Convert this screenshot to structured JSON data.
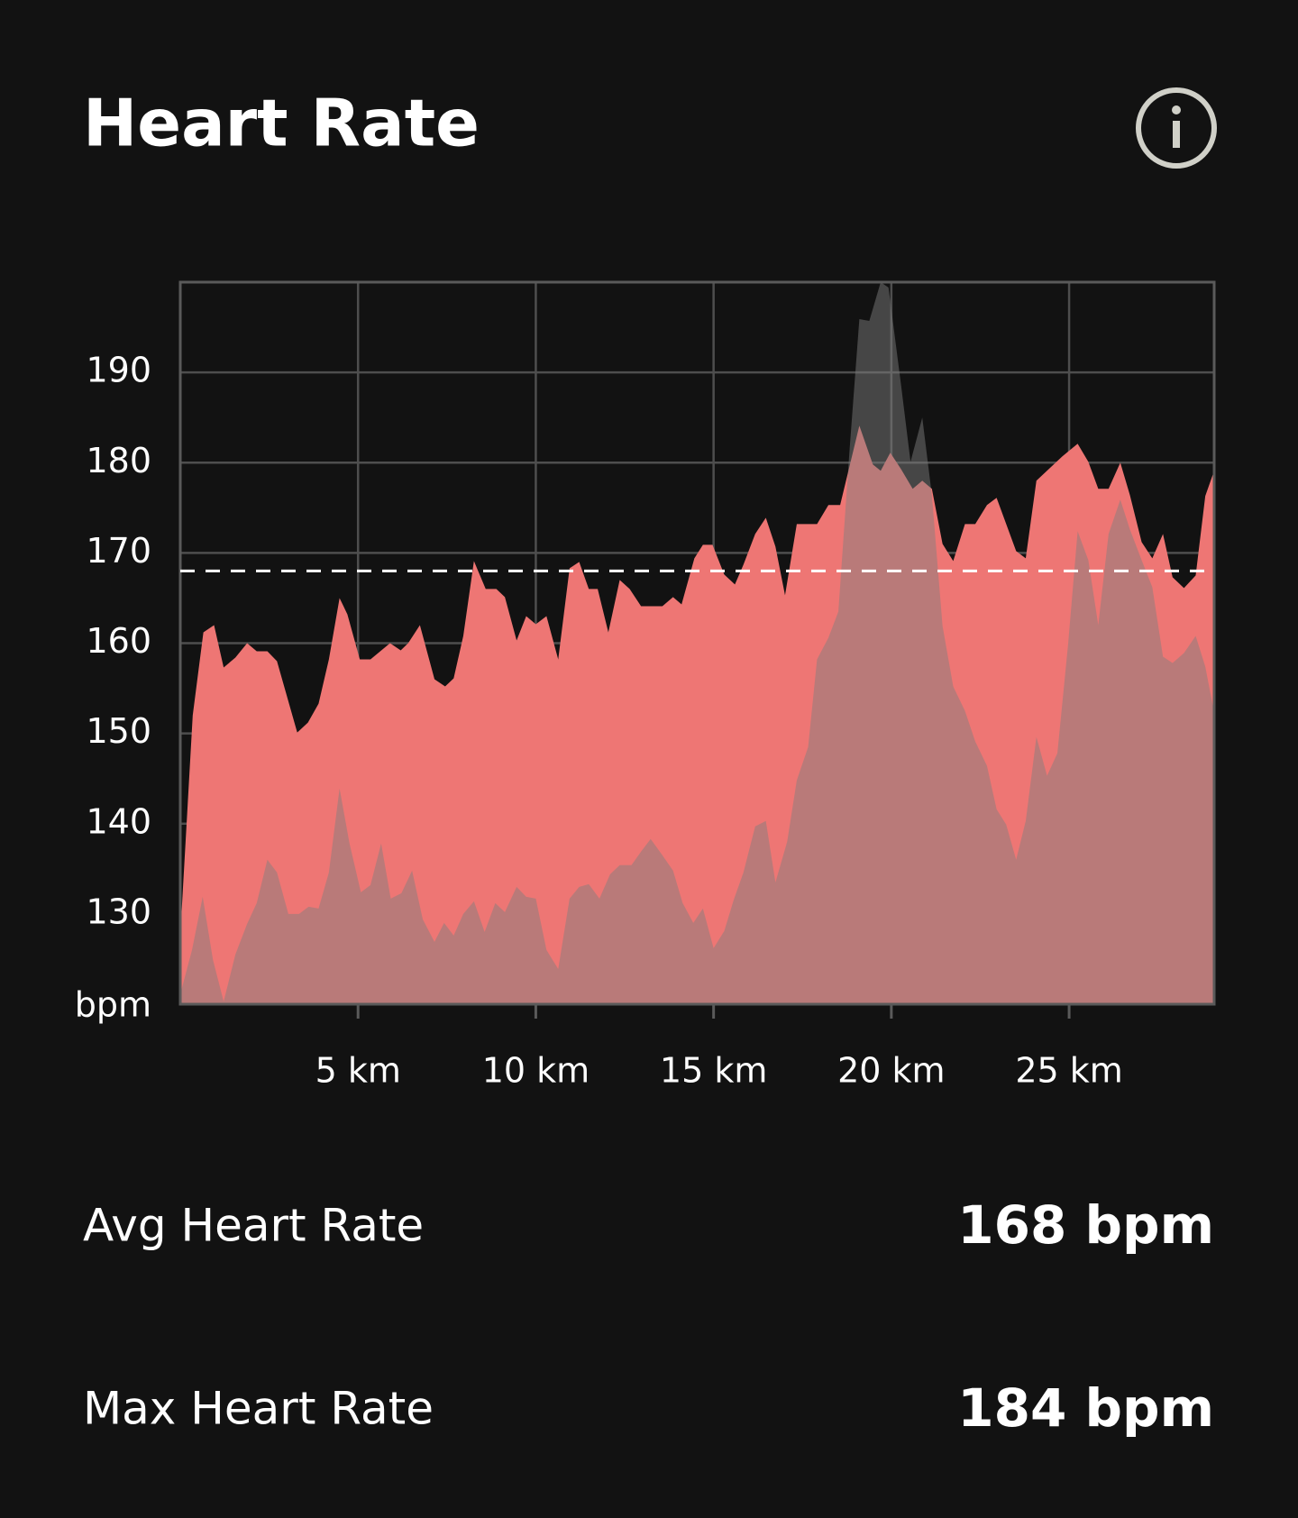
{
  "header": {
    "title": "Heart Rate"
  },
  "chart_data": {
    "type": "area",
    "y_label": "bpm",
    "xlim": [
      0,
      29.08
    ],
    "ylim": [
      120,
      200
    ],
    "xticks": [
      {
        "value": 5,
        "label": "5 km"
      },
      {
        "value": 10,
        "label": "10 km"
      },
      {
        "value": 15,
        "label": "15 km"
      },
      {
        "value": 20,
        "label": "20 km"
      },
      {
        "value": 25,
        "label": "25 km"
      }
    ],
    "yticks": [
      130,
      140,
      150,
      160,
      170,
      180,
      190
    ],
    "grid": true,
    "reference_line": 168,
    "series": [
      {
        "color": "#ee7674",
        "opacity": 1,
        "x": [
          0,
          0.35,
          0.65,
          0.95,
          1.22,
          1.55,
          1.88,
          2.15,
          2.45,
          2.72,
          3.29,
          3.59,
          3.89,
          4.18,
          4.48,
          4.7,
          5.05,
          5.35,
          5.9,
          6.2,
          6.41,
          6.74,
          7.15,
          7.45,
          7.69,
          7.96,
          8.26,
          8.59,
          8.89,
          9.13,
          9.46,
          9.73,
          10.0,
          10.3,
          10.63,
          10.95,
          11.22,
          11.49,
          11.74,
          12.04,
          12.36,
          12.64,
          12.96,
          13.56,
          13.86,
          14.1,
          14.46,
          14.7,
          14.97,
          15.3,
          15.6,
          15.84,
          16.17,
          16.47,
          16.74,
          17.01,
          17.34,
          17.91,
          18.23,
          18.56,
          19.1,
          19.48,
          19.7,
          19.97,
          20.27,
          20.6,
          20.87,
          21.14,
          21.44,
          21.74,
          22.07,
          22.36,
          22.69,
          22.96,
          23.51,
          23.78,
          24.08,
          24.81,
          25.24,
          25.54,
          25.82,
          26.11,
          26.44,
          26.71,
          27.04,
          27.34,
          27.64,
          27.91,
          28.23,
          28.56,
          28.83,
          29.08
        ],
        "values": [
          127.6,
          152,
          161.2,
          162,
          157.3,
          158.4,
          160,
          159.1,
          159.1,
          158,
          150.1,
          151.2,
          153.3,
          158.2,
          165,
          163.2,
          158.2,
          158.2,
          160,
          159.2,
          160,
          162,
          156,
          155.2,
          156.1,
          160.8,
          169.1,
          166,
          166,
          165.1,
          160.3,
          163,
          162.1,
          163,
          158.2,
          168.3,
          169,
          166,
          166,
          161.2,
          167,
          166,
          164.1,
          164.1,
          165.1,
          164.3,
          169.4,
          170.9,
          170.9,
          167.6,
          166.5,
          168.7,
          172.1,
          173.9,
          170.7,
          165.3,
          173.2,
          173.2,
          175.3,
          175.3,
          184.1,
          179.8,
          179.1,
          181.1,
          179.3,
          177.1,
          178,
          177.1,
          171,
          169.1,
          173.2,
          173.2,
          175.3,
          176.1,
          170.2,
          169.4,
          178,
          180.7,
          182.1,
          180.1,
          177.1,
          177.1,
          180,
          176.4,
          171.2,
          169.4,
          172.1,
          167.3,
          166.1,
          167.5,
          176.3,
          179.1
        ]
      },
      {
        "color": "#808080",
        "opacity": 0.48,
        "x": [
          0,
          0.33,
          0.63,
          0.92,
          1.22,
          1.55,
          1.88,
          2.15,
          2.45,
          2.72,
          3.04,
          3.34,
          3.61,
          3.89,
          4.18,
          4.48,
          4.76,
          5.08,
          5.35,
          5.65,
          5.92,
          6.22,
          6.52,
          6.82,
          7.15,
          7.42,
          7.69,
          7.96,
          8.26,
          8.56,
          8.86,
          9.13,
          9.46,
          9.73,
          10.0,
          10.3,
          10.63,
          10.95,
          11.22,
          11.49,
          11.79,
          12.09,
          12.36,
          12.69,
          12.96,
          13.23,
          13.56,
          13.86,
          14.13,
          14.43,
          14.7,
          15.0,
          15.3,
          15.57,
          15.84,
          16.17,
          16.47,
          16.74,
          17.07,
          17.34,
          17.66,
          17.91,
          18.23,
          18.51,
          18.83,
          19.1,
          19.38,
          19.7,
          19.92,
          20.27,
          20.54,
          20.87,
          21.14,
          21.44,
          21.74,
          22.07,
          22.36,
          22.69,
          22.96,
          23.23,
          23.51,
          23.78,
          24.08,
          24.38,
          24.67,
          24.97,
          25.24,
          25.54,
          25.82,
          26.11,
          26.44,
          26.71,
          27.04,
          27.34,
          27.64,
          27.91,
          28.23,
          28.56,
          28.83,
          29.08
        ],
        "values": [
          121.1,
          126,
          131.9,
          124.9,
          120.3,
          125.5,
          128.9,
          131.2,
          136,
          134.6,
          130,
          130,
          130.8,
          130.6,
          134.6,
          143.9,
          137.8,
          132.4,
          133.2,
          137.8,
          131.7,
          132.3,
          134.8,
          129.4,
          126.9,
          129,
          127.6,
          130,
          131.4,
          128,
          131.2,
          130.2,
          133,
          131.9,
          131.7,
          126,
          123.9,
          131.7,
          133,
          133.3,
          131.7,
          134.4,
          135.4,
          135.4,
          136.9,
          138.3,
          136.5,
          134.8,
          131.2,
          129,
          130.6,
          126.2,
          128.1,
          131.6,
          134.6,
          139.7,
          140.3,
          133.5,
          138,
          144.8,
          148.5,
          158.2,
          160.6,
          163.5,
          181.7,
          195.9,
          195.7,
          200,
          199.4,
          188.7,
          180.1,
          185,
          176.4,
          161.9,
          155.2,
          152.5,
          149.1,
          146.4,
          141.6,
          139.9,
          136,
          140.3,
          149.6,
          145.3,
          147.8,
          159.8,
          172.4,
          169.2,
          162,
          172.1,
          175.9,
          172.6,
          169.2,
          166.2,
          158.5,
          157.8,
          158.9,
          160.8,
          157.4,
          152.3
        ]
      }
    ]
  },
  "stats": [
    {
      "label": "Avg Heart Rate",
      "value": "168 bpm"
    },
    {
      "label": "Max Heart Rate",
      "value": "184 bpm"
    }
  ]
}
